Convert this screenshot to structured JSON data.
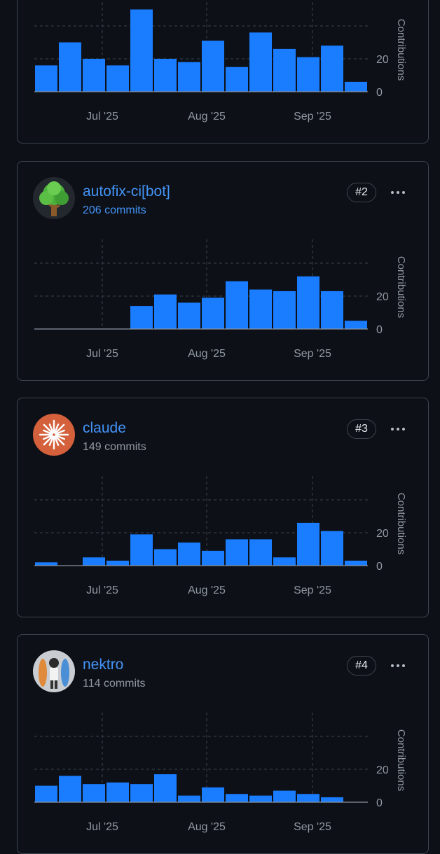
{
  "theme": {
    "background": "#0d1117",
    "bar": "#1a7cff",
    "link": "#4493f8",
    "muted": "#9198a1",
    "border": "#3d444d"
  },
  "cards": [
    {
      "name": "",
      "commits": "",
      "rank": "",
      "avatar": "",
      "chart_data": {
        "type": "bar",
        "ylabel": "Contributions",
        "yticks": [
          0,
          20
        ],
        "ylim": [
          0,
          50
        ],
        "x_tick_labels": [
          "Jul '25",
          "Aug '25",
          "Sep '25"
        ],
        "values": [
          16,
          30,
          20,
          16,
          50,
          20,
          18,
          31,
          15,
          36,
          26,
          21,
          28,
          6
        ]
      }
    },
    {
      "name": "autofix-ci[bot]",
      "commits": "206 commits",
      "rank": "#2",
      "avatar": "tree-icon",
      "chart_data": {
        "type": "bar",
        "ylabel": "Contributions",
        "yticks": [
          0,
          20
        ],
        "ylim": [
          0,
          50
        ],
        "x_tick_labels": [
          "Jul '25",
          "Aug '25",
          "Sep '25"
        ],
        "values": [
          0,
          0,
          0,
          0,
          14,
          21,
          16,
          19,
          29,
          24,
          23,
          32,
          23,
          5
        ]
      }
    },
    {
      "name": "claude",
      "commits": "149 commits",
      "rank": "#3",
      "avatar": "sunburst-icon",
      "chart_data": {
        "type": "bar",
        "ylabel": "Contributions",
        "yticks": [
          0,
          20
        ],
        "ylim": [
          0,
          50
        ],
        "x_tick_labels": [
          "Jul '25",
          "Aug '25",
          "Sep '25"
        ],
        "values": [
          2,
          0,
          5,
          3,
          19,
          10,
          14,
          9,
          16,
          16,
          5,
          26,
          21,
          3
        ]
      }
    },
    {
      "name": "nektro",
      "commits": "114 commits",
      "rank": "#4",
      "avatar": "person-portrait-icon",
      "chart_data": {
        "type": "bar",
        "ylabel": "Contributions",
        "yticks": [
          0,
          20
        ],
        "ylim": [
          0,
          50
        ],
        "x_tick_labels": [
          "Jul '25",
          "Aug '25",
          "Sep '25"
        ],
        "values": [
          10,
          16,
          11,
          12,
          11,
          17,
          4,
          9,
          5,
          4,
          7,
          5,
          3,
          0
        ]
      }
    }
  ]
}
